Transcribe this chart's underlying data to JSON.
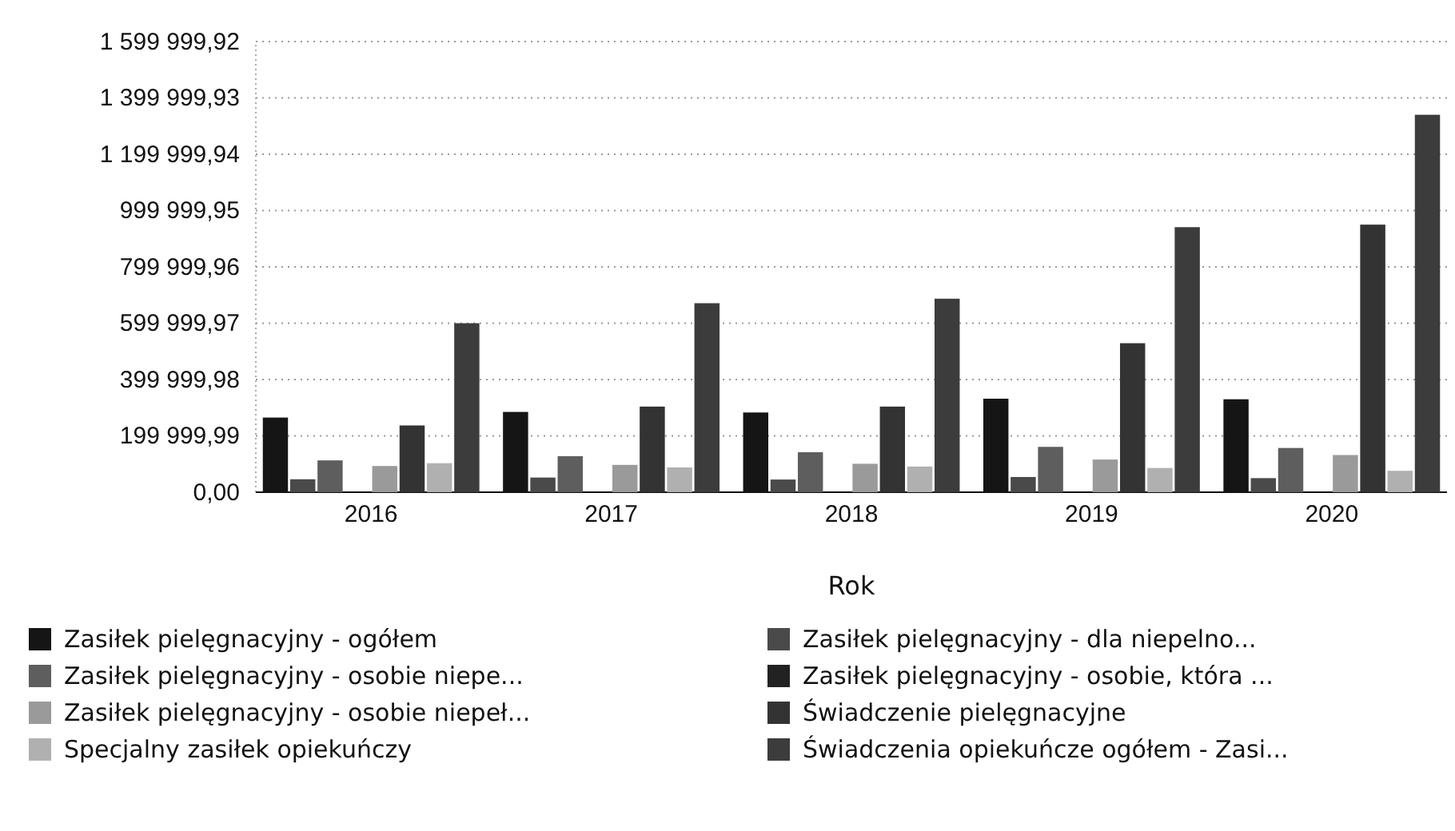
{
  "chart_data": {
    "type": "bar",
    "xlabel": "Rok",
    "categories": [
      "2016",
      "2017",
      "2018",
      "2019",
      "2020"
    ],
    "series": [
      {
        "name": "Zasiłek pielęgnacyjny - ogółem",
        "color": "#151515",
        "values": [
          265000,
          285000,
          283000,
          332000,
          330000
        ]
      },
      {
        "name": "Zasiłek pielęgnacyjny - dla niepelno...",
        "color": "#4a4a4a",
        "values": [
          46000,
          52000,
          45000,
          54000,
          50000
        ]
      },
      {
        "name": "Zasiłek pielęgnacyjny - osobie niepe...",
        "color": "#5e5e5e",
        "values": [
          113000,
          128000,
          142000,
          161000,
          157000
        ]
      },
      {
        "name": "Zasiłek pielęgnacyjny - osobie, która ...",
        "color": "#222222",
        "values": [
          null,
          null,
          null,
          null,
          null
        ]
      },
      {
        "name": "Zasiłek pielęgnacyjny -  osobie niepeł...",
        "color": "#9a9a9a",
        "values": [
          93000,
          97000,
          101000,
          116000,
          132000
        ]
      },
      {
        "name": "Świadczenie pielęgnacyjne",
        "color": "#333333",
        "values": [
          237000,
          304000,
          304000,
          529000,
          950000
        ]
      },
      {
        "name": "Specjalny zasiłek opiekuńczy",
        "color": "#b0b0b0",
        "values": [
          103000,
          88000,
          91000,
          86000,
          76000
        ]
      },
      {
        "name": "Świadczenia opiekuńcze ogółem - Zasi...",
        "color": "#3c3c3c",
        "values": [
          600000,
          671000,
          687000,
          941000,
          1340000
        ]
      }
    ],
    "ylim": [
      0,
      1599999.92
    ],
    "yticks": [
      {
        "value": 0,
        "label": "0,00"
      },
      {
        "value": 199999.99,
        "label": "199 999,99"
      },
      {
        "value": 399999.98,
        "label": "399 999,98"
      },
      {
        "value": 599999.97,
        "label": "599 999,97"
      },
      {
        "value": 799999.96,
        "label": "799 999,96"
      },
      {
        "value": 999999.95,
        "label": "999 999,95"
      },
      {
        "value": 1199999.94,
        "label": "1 199 999,94"
      },
      {
        "value": 1399999.93,
        "label": "1 399 999,93"
      },
      {
        "value": 1599999.92,
        "label": "1 599 999,92"
      }
    ],
    "grid": "y",
    "legend": "bottom"
  }
}
